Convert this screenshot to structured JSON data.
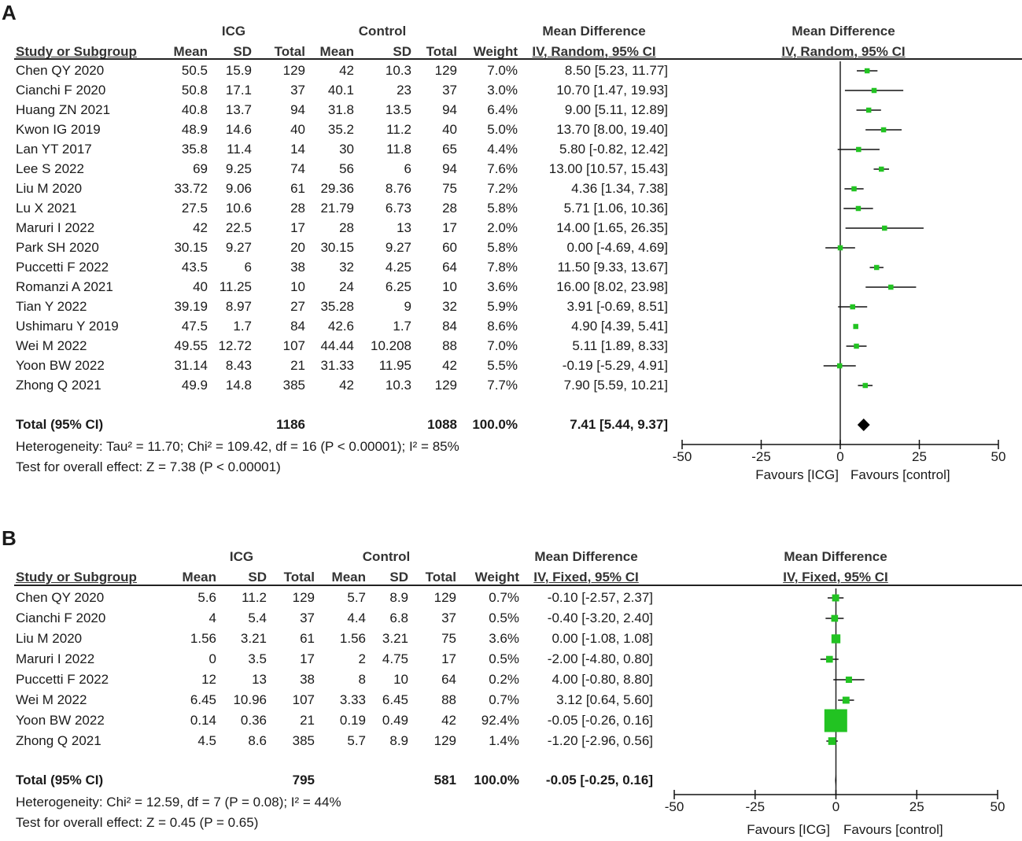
{
  "panels": {
    "A": {
      "label": "A",
      "group1": "ICG",
      "group2": "Control",
      "md_header": "Mean Difference",
      "md_method": "IV, Random, 95% CI",
      "plot_header": "Mean Difference",
      "plot_method": "IV, Random, 95% CI",
      "col_study": "Study or Subgroup",
      "col_mean": "Mean",
      "col_sd": "SD",
      "col_total": "Total",
      "col_weight": "Weight",
      "studies": [
        {
          "study": "Chen QY 2020",
          "m1": "50.5",
          "sd1": "15.9",
          "n1": "129",
          "m2": "42",
          "sd2": "10.3",
          "n2": "129",
          "weight": "7.0%",
          "ci": "8.50 [5.23, 11.77]"
        },
        {
          "study": "Cianchi F 2020",
          "m1": "50.8",
          "sd1": "17.1",
          "n1": "37",
          "m2": "40.1",
          "sd2": "23",
          "n2": "37",
          "weight": "3.0%",
          "ci": "10.70 [1.47, 19.93]"
        },
        {
          "study": "Huang ZN 2021",
          "m1": "40.8",
          "sd1": "13.7",
          "n1": "94",
          "m2": "31.8",
          "sd2": "13.5",
          "n2": "94",
          "weight": "6.4%",
          "ci": "9.00 [5.11, 12.89]"
        },
        {
          "study": "Kwon IG 2019",
          "m1": "48.9",
          "sd1": "14.6",
          "n1": "40",
          "m2": "35.2",
          "sd2": "11.2",
          "n2": "40",
          "weight": "5.0%",
          "ci": "13.70 [8.00, 19.40]"
        },
        {
          "study": "Lan YT 2017",
          "m1": "35.8",
          "sd1": "11.4",
          "n1": "14",
          "m2": "30",
          "sd2": "11.8",
          "n2": "65",
          "weight": "4.4%",
          "ci": "5.80 [-0.82, 12.42]"
        },
        {
          "study": "Lee S 2022",
          "m1": "69",
          "sd1": "9.25",
          "n1": "74",
          "m2": "56",
          "sd2": "6",
          "n2": "94",
          "weight": "7.6%",
          "ci": "13.00 [10.57, 15.43]"
        },
        {
          "study": "Liu M 2020",
          "m1": "33.72",
          "sd1": "9.06",
          "n1": "61",
          "m2": "29.36",
          "sd2": "8.76",
          "n2": "75",
          "weight": "7.2%",
          "ci": "4.36 [1.34, 7.38]"
        },
        {
          "study": "Lu X 2021",
          "m1": "27.5",
          "sd1": "10.6",
          "n1": "28",
          "m2": "21.79",
          "sd2": "6.73",
          "n2": "28",
          "weight": "5.8%",
          "ci": "5.71 [1.06, 10.36]"
        },
        {
          "study": "Maruri I 2022",
          "m1": "42",
          "sd1": "22.5",
          "n1": "17",
          "m2": "28",
          "sd2": "13",
          "n2": "17",
          "weight": "2.0%",
          "ci": "14.00 [1.65, 26.35]"
        },
        {
          "study": "Park SH 2020",
          "m1": "30.15",
          "sd1": "9.27",
          "n1": "20",
          "m2": "30.15",
          "sd2": "9.27",
          "n2": "60",
          "weight": "5.8%",
          "ci": "0.00 [-4.69, 4.69]"
        },
        {
          "study": "Puccetti F 2022",
          "m1": "43.5",
          "sd1": "6",
          "n1": "38",
          "m2": "32",
          "sd2": "4.25",
          "n2": "64",
          "weight": "7.8%",
          "ci": "11.50 [9.33, 13.67]"
        },
        {
          "study": "Romanzi A 2021",
          "m1": "40",
          "sd1": "11.25",
          "n1": "10",
          "m2": "24",
          "sd2": "6.25",
          "n2": "10",
          "weight": "3.6%",
          "ci": "16.00 [8.02, 23.98]"
        },
        {
          "study": "Tian Y 2022",
          "m1": "39.19",
          "sd1": "8.97",
          "n1": "27",
          "m2": "35.28",
          "sd2": "9",
          "n2": "32",
          "weight": "5.9%",
          "ci": "3.91 [-0.69, 8.51]"
        },
        {
          "study": "Ushimaru Y 2019",
          "m1": "47.5",
          "sd1": "1.7",
          "n1": "84",
          "m2": "42.6",
          "sd2": "1.7",
          "n2": "84",
          "weight": "8.6%",
          "ci": "4.90 [4.39, 5.41]"
        },
        {
          "study": "Wei M 2022",
          "m1": "49.55",
          "sd1": "12.72",
          "n1": "107",
          "m2": "44.44",
          "sd2": "10.208",
          "n2": "88",
          "weight": "7.0%",
          "ci": "5.11 [1.89, 8.33]"
        },
        {
          "study": "Yoon BW 2022",
          "m1": "31.14",
          "sd1": "8.43",
          "n1": "21",
          "m2": "31.33",
          "sd2": "11.95",
          "n2": "42",
          "weight": "5.5%",
          "ci": "-0.19 [-5.29, 4.91]"
        },
        {
          "study": "Zhong Q 2021",
          "m1": "49.9",
          "sd1": "14.8",
          "n1": "385",
          "m2": "42",
          "sd2": "10.3",
          "n2": "129",
          "weight": "7.7%",
          "ci": "7.90 [5.59, 10.21]"
        }
      ],
      "total": {
        "label": "Total (95% CI)",
        "n1": "1186",
        "n2": "1088",
        "weight": "100.0%",
        "ci": "7.41 [5.44, 9.37]"
      },
      "heterogeneity": "Heterogeneity: Tau² = 11.70; Chi² = 109.42, df = 16 (P < 0.00001); I² = 85%",
      "overall": "Test for overall effect: Z = 7.38 (P < 0.00001)",
      "axis_ticks": [
        "-50",
        "-25",
        "0",
        "25",
        "50"
      ],
      "favours_left": "Favours [ICG]",
      "favours_right": "Favours [control]"
    },
    "B": {
      "label": "B",
      "group1": "ICG",
      "group2": "Control",
      "md_header": "Mean Difference",
      "md_method": "IV, Fixed, 95% CI",
      "plot_header": "Mean Difference",
      "plot_method": "IV, Fixed, 95% CI",
      "col_study": "Study or Subgroup",
      "col_mean": "Mean",
      "col_sd": "SD",
      "col_total": "Total",
      "col_weight": "Weight",
      "studies": [
        {
          "study": "Chen QY 2020",
          "m1": "5.6",
          "sd1": "11.2",
          "n1": "129",
          "m2": "5.7",
          "sd2": "8.9",
          "n2": "129",
          "weight": "0.7%",
          "ci": "-0.10 [-2.57, 2.37]"
        },
        {
          "study": "Cianchi F 2020",
          "m1": "4",
          "sd1": "5.4",
          "n1": "37",
          "m2": "4.4",
          "sd2": "6.8",
          "n2": "37",
          "weight": "0.5%",
          "ci": "-0.40 [-3.20, 2.40]"
        },
        {
          "study": "Liu M 2020",
          "m1": "1.56",
          "sd1": "3.21",
          "n1": "61",
          "m2": "1.56",
          "sd2": "3.21",
          "n2": "75",
          "weight": "3.6%",
          "ci": "0.00 [-1.08, 1.08]"
        },
        {
          "study": "Maruri I 2022",
          "m1": "0",
          "sd1": "3.5",
          "n1": "17",
          "m2": "2",
          "sd2": "4.75",
          "n2": "17",
          "weight": "0.5%",
          "ci": "-2.00 [-4.80, 0.80]"
        },
        {
          "study": "Puccetti F 2022",
          "m1": "12",
          "sd1": "13",
          "n1": "38",
          "m2": "8",
          "sd2": "10",
          "n2": "64",
          "weight": "0.2%",
          "ci": "4.00 [-0.80, 8.80]"
        },
        {
          "study": "Wei M 2022",
          "m1": "6.45",
          "sd1": "10.96",
          "n1": "107",
          "m2": "3.33",
          "sd2": "6.45",
          "n2": "88",
          "weight": "0.7%",
          "ci": "3.12 [0.64, 5.60]"
        },
        {
          "study": "Yoon BW 2022",
          "m1": "0.14",
          "sd1": "0.36",
          "n1": "21",
          "m2": "0.19",
          "sd2": "0.49",
          "n2": "42",
          "weight": "92.4%",
          "ci": "-0.05 [-0.26, 0.16]"
        },
        {
          "study": "Zhong Q 2021",
          "m1": "4.5",
          "sd1": "8.6",
          "n1": "385",
          "m2": "5.7",
          "sd2": "8.9",
          "n2": "129",
          "weight": "1.4%",
          "ci": "-1.20 [-2.96, 0.56]"
        }
      ],
      "total": {
        "label": "Total (95% CI)",
        "n1": "795",
        "n2": "581",
        "weight": "100.0%",
        "ci": "-0.05 [-0.25, 0.16]"
      },
      "heterogeneity": "Heterogeneity: Chi² = 12.59, df = 7 (P = 0.08); I² = 44%",
      "overall": "Test for overall effect: Z = 0.45 (P = 0.65)",
      "axis_ticks": [
        "-50",
        "-25",
        "0",
        "25",
        "50"
      ],
      "favours_left": "Favours [ICG]",
      "favours_right": "Favours [control]"
    }
  },
  "chart_data": [
    {
      "type": "forest",
      "title": "A",
      "model": "IV, Random, 95% CI",
      "xlim": [
        -50,
        50
      ],
      "xticks": [
        -50,
        -25,
        0,
        25,
        50
      ],
      "studies": [
        {
          "name": "Chen QY 2020",
          "md": 8.5,
          "lo": 5.23,
          "hi": 11.77,
          "weight": 7.0
        },
        {
          "name": "Cianchi F 2020",
          "md": 10.7,
          "lo": 1.47,
          "hi": 19.93,
          "weight": 3.0
        },
        {
          "name": "Huang ZN 2021",
          "md": 9.0,
          "lo": 5.11,
          "hi": 12.89,
          "weight": 6.4
        },
        {
          "name": "Kwon IG 2019",
          "md": 13.7,
          "lo": 8.0,
          "hi": 19.4,
          "weight": 5.0
        },
        {
          "name": "Lan YT 2017",
          "md": 5.8,
          "lo": -0.82,
          "hi": 12.42,
          "weight": 4.4
        },
        {
          "name": "Lee S 2022",
          "md": 13.0,
          "lo": 10.57,
          "hi": 15.43,
          "weight": 7.6
        },
        {
          "name": "Liu M 2020",
          "md": 4.36,
          "lo": 1.34,
          "hi": 7.38,
          "weight": 7.2
        },
        {
          "name": "Lu X 2021",
          "md": 5.71,
          "lo": 1.06,
          "hi": 10.36,
          "weight": 5.8
        },
        {
          "name": "Maruri I 2022",
          "md": 14.0,
          "lo": 1.65,
          "hi": 26.35,
          "weight": 2.0
        },
        {
          "name": "Park SH 2020",
          "md": 0.0,
          "lo": -4.69,
          "hi": 4.69,
          "weight": 5.8
        },
        {
          "name": "Puccetti F 2022",
          "md": 11.5,
          "lo": 9.33,
          "hi": 13.67,
          "weight": 7.8
        },
        {
          "name": "Romanzi A 2021",
          "md": 16.0,
          "lo": 8.02,
          "hi": 23.98,
          "weight": 3.6
        },
        {
          "name": "Tian Y 2022",
          "md": 3.91,
          "lo": -0.69,
          "hi": 8.51,
          "weight": 5.9
        },
        {
          "name": "Ushimaru Y 2019",
          "md": 4.9,
          "lo": 4.39,
          "hi": 5.41,
          "weight": 8.6
        },
        {
          "name": "Wei M 2022",
          "md": 5.11,
          "lo": 1.89,
          "hi": 8.33,
          "weight": 7.0
        },
        {
          "name": "Yoon BW 2022",
          "md": -0.19,
          "lo": -5.29,
          "hi": 4.91,
          "weight": 5.5
        },
        {
          "name": "Zhong Q 2021",
          "md": 7.9,
          "lo": 5.59,
          "hi": 10.21,
          "weight": 7.7
        }
      ],
      "total": {
        "md": 7.41,
        "lo": 5.44,
        "hi": 9.37
      }
    },
    {
      "type": "forest",
      "title": "B",
      "model": "IV, Fixed, 95% CI",
      "xlim": [
        -50,
        50
      ],
      "xticks": [
        -50,
        -25,
        0,
        25,
        50
      ],
      "studies": [
        {
          "name": "Chen QY 2020",
          "md": -0.1,
          "lo": -2.57,
          "hi": 2.37,
          "weight": 0.7
        },
        {
          "name": "Cianchi F 2020",
          "md": -0.4,
          "lo": -3.2,
          "hi": 2.4,
          "weight": 0.5
        },
        {
          "name": "Liu M 2020",
          "md": 0.0,
          "lo": -1.08,
          "hi": 1.08,
          "weight": 3.6
        },
        {
          "name": "Maruri I 2022",
          "md": -2.0,
          "lo": -4.8,
          "hi": 0.8,
          "weight": 0.5
        },
        {
          "name": "Puccetti F 2022",
          "md": 4.0,
          "lo": -0.8,
          "hi": 8.8,
          "weight": 0.2
        },
        {
          "name": "Wei M 2022",
          "md": 3.12,
          "lo": 0.64,
          "hi": 5.6,
          "weight": 0.7
        },
        {
          "name": "Yoon BW 2022",
          "md": -0.05,
          "lo": -0.26,
          "hi": 0.16,
          "weight": 92.4
        },
        {
          "name": "Zhong Q 2021",
          "md": -1.2,
          "lo": -2.96,
          "hi": 0.56,
          "weight": 1.4
        }
      ],
      "total": {
        "md": -0.05,
        "lo": -0.25,
        "hi": 0.16
      }
    }
  ]
}
